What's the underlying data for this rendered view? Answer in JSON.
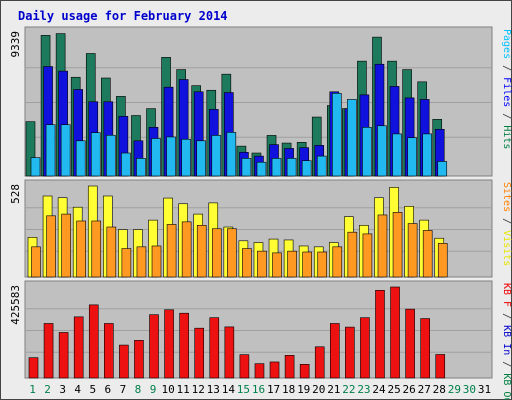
{
  "chart_data": {
    "type": "bar",
    "title": "Daily usage for February 2014",
    "categories": [
      "1",
      "2",
      "3",
      "4",
      "5",
      "6",
      "7",
      "8",
      "9",
      "10",
      "11",
      "12",
      "13",
      "14",
      "15",
      "16",
      "17",
      "18",
      "19",
      "20",
      "21",
      "22",
      "23",
      "24",
      "25",
      "26",
      "27",
      "28",
      "29",
      "30",
      "31"
    ],
    "weekend_days": [
      "1",
      "2",
      "8",
      "9",
      "15",
      "16",
      "22",
      "23",
      "29",
      "30"
    ],
    "panels": [
      {
        "id": "hits",
        "max_label": "9339",
        "ymax": 9339,
        "right_labels": [
          {
            "text": "Pages",
            "color": "#00c0ff"
          },
          {
            "text": " / ",
            "color": "#333333"
          },
          {
            "text": "Files",
            "color": "#0000ff"
          },
          {
            "text": " / ",
            "color": "#333333"
          },
          {
            "text": "Hits",
            "color": "#008040"
          }
        ],
        "series": [
          {
            "key": "hits",
            "color": "#1e7a5c",
            "values": [
              3550,
              9185,
              9300,
              6450,
              8000,
              6400,
              5200,
              3950,
              4400,
              7750,
              6950,
              5900,
              5600,
              6650,
              1950,
              1500,
              2650,
              2150,
              2200,
              3850,
              4600,
              4400,
              7500,
              9070,
              7500,
              6950,
              6150,
              3700,
              0,
              0,
              0
            ]
          },
          {
            "key": "files",
            "color": "#1111dd",
            "values": [
              0,
              7150,
              6850,
              5650,
              4850,
              4850,
              3900,
              2300,
              3180,
              5800,
              6300,
              5500,
              4350,
              5450,
              1550,
              1300,
              2050,
              1800,
              1850,
              2000,
              5500,
              4400,
              5300,
              7300,
              5850,
              5100,
              5000,
              3050,
              0,
              0,
              0
            ]
          },
          {
            "key": "pages",
            "color": "#22b8f0",
            "values": [
              1200,
              3350,
              3350,
              2300,
              2830,
              2660,
              1500,
              1150,
              2450,
              2550,
              2400,
              2300,
              2650,
              2850,
              1150,
              900,
              1150,
              1150,
              1000,
              1300,
              5400,
              5000,
              3180,
              3280,
              2750,
              2500,
              2750,
              950,
              0,
              0,
              0
            ]
          }
        ]
      },
      {
        "id": "visits",
        "max_label": "528",
        "ymax": 528,
        "right_labels": [
          {
            "text": "Sites",
            "color": "#ff8000"
          },
          {
            "text": " / ",
            "color": "#333333"
          },
          {
            "text": "Visits",
            "color": "#e6e600"
          }
        ],
        "series": [
          {
            "key": "visits",
            "color": "#ffff33",
            "values": [
              230,
              470,
              460,
              405,
              528,
              470,
              275,
              275,
              330,
              458,
              425,
              365,
              430,
              290,
              210,
              200,
              220,
              215,
              180,
              175,
              200,
              350,
              300,
              460,
              520,
              410,
              330,
              225,
              0,
              0,
              0
            ]
          },
          {
            "key": "sites",
            "color": "#ff9922",
            "values": [
              175,
              355,
              365,
              325,
              325,
              290,
              165,
              175,
              180,
              305,
              320,
              300,
              280,
              280,
              165,
              150,
              140,
              150,
              145,
              145,
              175,
              260,
              250,
              360,
              375,
              310,
              270,
              195,
              0,
              0,
              0
            ]
          }
        ]
      },
      {
        "id": "kbytes",
        "max_label": "425583",
        "ymax": 425583,
        "right_labels": [
          {
            "text": "KB F",
            "color": "#ee0000"
          },
          {
            "text": " / ",
            "color": "#333333"
          },
          {
            "text": "KB In",
            "color": "#0000cc"
          },
          {
            "text": " / ",
            "color": "#333333"
          },
          {
            "text": "KB Out",
            "color": "#008040"
          }
        ],
        "series": [
          {
            "key": "kbf",
            "color": "#ee1111",
            "values": [
              95000,
              255000,
              213000,
              286000,
              342000,
              255000,
              154000,
              176000,
              296000,
              319000,
              303000,
              233000,
              282000,
              239000,
              109000,
              67000,
              75000,
              106000,
              64000,
              146000,
              255000,
              238000,
              282000,
              410000,
              425583,
              322000,
              278000,
              110000,
              0,
              0,
              0
            ]
          }
        ]
      }
    ]
  }
}
